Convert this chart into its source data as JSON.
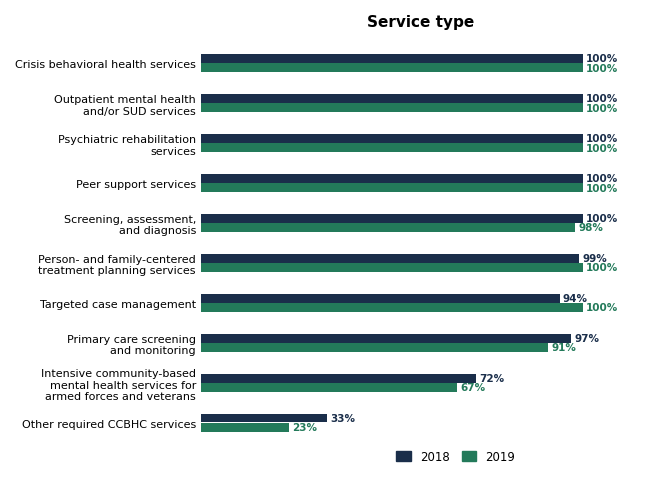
{
  "title": "Service type",
  "categories": [
    "Crisis behavioral health services",
    "Outpatient mental health\nand/or SUD services",
    "Psychiatric rehabilitation\nservices",
    "Peer support services",
    "Screening, assessment,\nand diagnosis",
    "Person- and family-centered\ntreatment planning services",
    "Targeted case management",
    "Primary care screening\nand monitoring",
    "Intensive community-based\nmental health services for\narmed forces and veterans",
    "Other required CCBHC services"
  ],
  "values_2018": [
    100,
    100,
    100,
    100,
    100,
    99,
    94,
    97,
    72,
    33
  ],
  "values_2019": [
    100,
    100,
    100,
    100,
    98,
    100,
    100,
    91,
    67,
    23
  ],
  "color_2018": "#1a2e4a",
  "color_2019": "#237a5a",
  "label_2018": "2018",
  "label_2019": "2019",
  "background_color": "#ffffff",
  "title_fontsize": 11,
  "label_fontsize": 8.0,
  "bar_label_fontsize": 7.5,
  "legend_fontsize": 8.5,
  "xlim": [
    0,
    115
  ]
}
